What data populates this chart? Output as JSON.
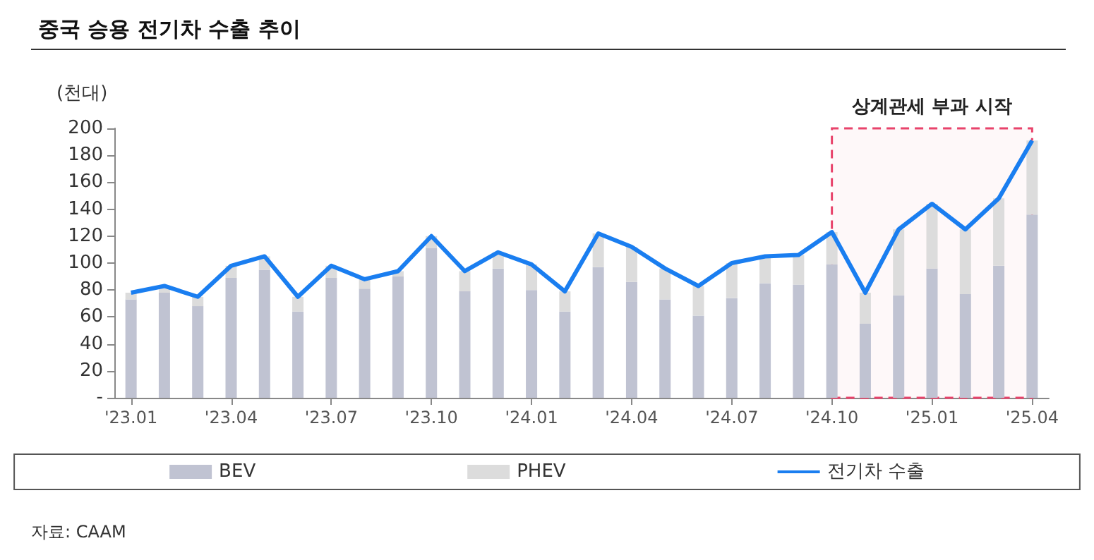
{
  "chart_data": {
    "type": "bar",
    "title": "중국 승용 전기차 수출 추이",
    "ylabel": "(천대)",
    "categories": [
      "'23.01",
      null,
      null,
      "'23.04",
      null,
      null,
      "'23.07",
      null,
      null,
      "'23.10",
      null,
      null,
      "'24.01",
      null,
      null,
      "'24.04",
      null,
      null,
      "'24.07",
      null,
      null,
      "'24.10",
      null,
      null,
      "'25.01",
      null,
      null,
      "'25.04"
    ],
    "stacked": true,
    "series": [
      {
        "name": "BEV",
        "color": "#c0c3d2",
        "values": [
          73,
          78,
          68,
          89,
          95,
          64,
          89,
          81,
          90,
          111,
          79,
          96,
          80,
          64,
          97,
          86,
          73,
          61,
          74,
          85,
          84,
          99,
          55,
          76,
          96,
          77,
          98,
          136
        ]
      },
      {
        "name": "PHEV",
        "color": "#dcdcdc",
        "values": [
          5,
          5,
          7,
          9,
          10,
          11,
          9,
          7,
          4,
          9,
          15,
          12,
          19,
          15,
          25,
          26,
          23,
          22,
          26,
          20,
          22,
          24,
          23,
          49,
          48,
          48,
          50,
          55
        ]
      },
      {
        "name": "전기차 수출",
        "type": "line",
        "color": "#1a7ef0",
        "marker": "none",
        "values": [
          78,
          83,
          75,
          98,
          105,
          75,
          98,
          88,
          94,
          120,
          94,
          108,
          99,
          79,
          122,
          112,
          96,
          83,
          100,
          105,
          106,
          123,
          78,
          125,
          144,
          125,
          148,
          191
        ]
      }
    ],
    "ylim": [
      0,
      200
    ],
    "yticks": [
      {
        "value": 0,
        "label": "-"
      },
      20,
      40,
      60,
      80,
      100,
      120,
      140,
      160,
      180,
      200
    ],
    "grid": false,
    "legend": "bottom",
    "bands": [
      {
        "axis": "x",
        "from": "'24.10",
        "to": "'25.04",
        "label": "상계관세 부과 시작",
        "color": "#e8436b"
      }
    ],
    "annotations": [
      "자료: CAAM"
    ]
  }
}
